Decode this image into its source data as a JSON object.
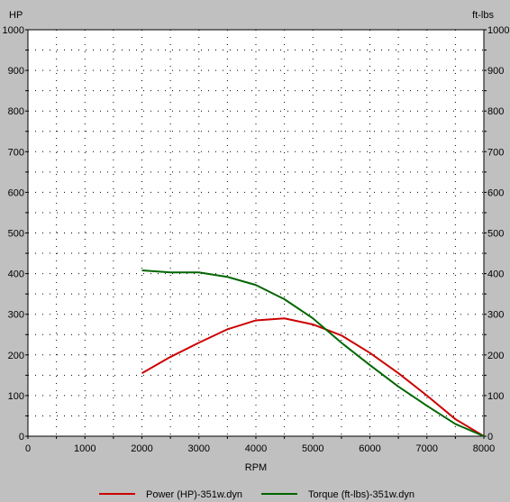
{
  "chart_data": {
    "type": "line",
    "x": [
      2000,
      2500,
      3000,
      3500,
      4000,
      4500,
      5000,
      5500,
      6000,
      6500,
      7000,
      7500,
      8000
    ],
    "xlabel": "RPM",
    "ylabel_left": "HP",
    "ylabel_right": "ft-lbs",
    "xlim": [
      0,
      8000
    ],
    "ylim": [
      0,
      1000
    ],
    "xticks": [
      0,
      1000,
      2000,
      3000,
      4000,
      5000,
      6000,
      7000,
      8000
    ],
    "yticks": [
      0,
      100,
      200,
      300,
      400,
      500,
      600,
      700,
      800,
      900,
      1000
    ],
    "grid": true,
    "legend_position": "bottom",
    "series": [
      {
        "name": "Power (HP)-351w.dyn",
        "color": "#cc0000",
        "values": [
          155,
          195,
          230,
          263,
          285,
          290,
          275,
          248,
          205,
          155,
          100,
          42,
          0
        ]
      },
      {
        "name": "Torque (ft-lbs)-351w.dyn",
        "color": "#006600",
        "values": [
          408,
          403,
          403,
          392,
          372,
          337,
          290,
          230,
          175,
          122,
          75,
          30,
          0
        ]
      }
    ]
  }
}
